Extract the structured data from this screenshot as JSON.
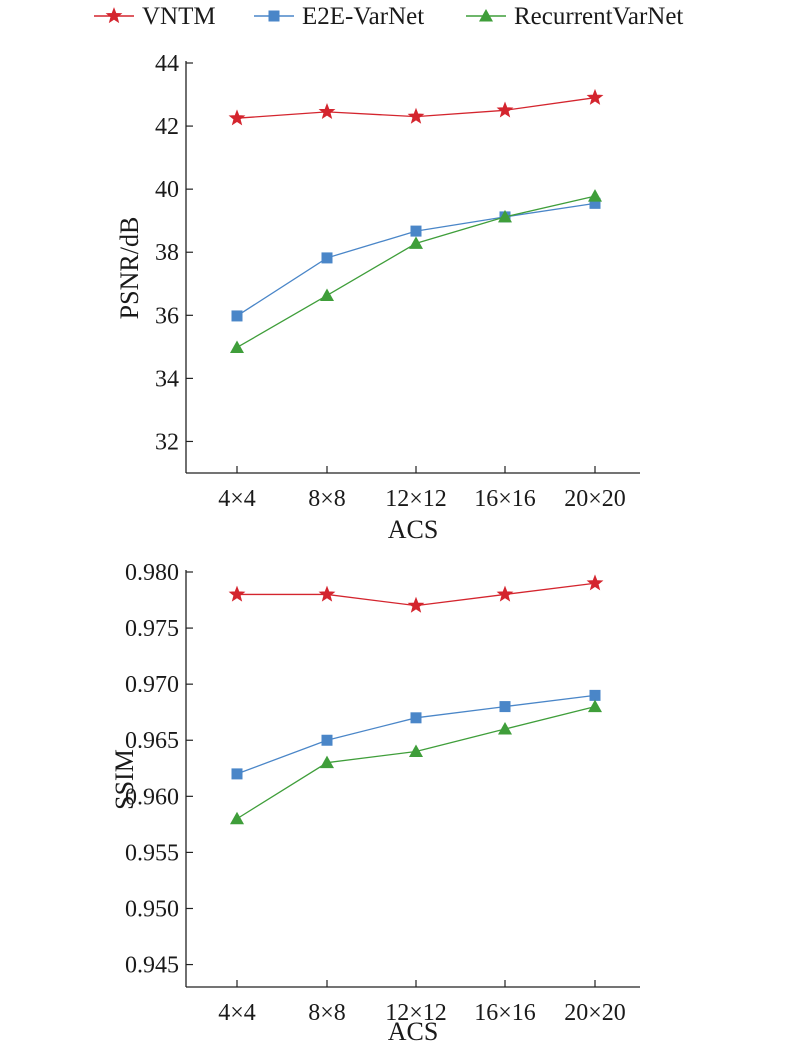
{
  "legend": {
    "items": [
      {
        "label": "VNTM",
        "color": "#d4252e",
        "marker": "star-icon"
      },
      {
        "label": "E2E-VarNet",
        "color": "#4a86c8",
        "marker": "square-icon"
      },
      {
        "label": "RecurrentVarNet",
        "color": "#3f9e3a",
        "marker": "triangle-icon"
      }
    ]
  },
  "chart_data": [
    {
      "type": "line",
      "title": "",
      "xlabel": "ACS",
      "ylabel": "PSNR/dB",
      "categories": [
        "4×4",
        "8×8",
        "12×12",
        "16×16",
        "20×20"
      ],
      "ylim": [
        31,
        44
      ],
      "yticks": [
        "32",
        "34",
        "36",
        "38",
        "40",
        "42",
        "44"
      ],
      "grid": false,
      "series": [
        {
          "name": "VNTM",
          "values": [
            42.25,
            42.45,
            42.3,
            42.5,
            42.9
          ]
        },
        {
          "name": "E2E-VarNet",
          "values": [
            35.98,
            37.82,
            38.67,
            39.12,
            39.55
          ]
        },
        {
          "name": "RecurrentVarNet",
          "values": [
            34.98,
            36.63,
            38.28,
            39.12,
            39.78
          ]
        }
      ]
    },
    {
      "type": "line",
      "title": "",
      "xlabel": "ACS",
      "ylabel": "SSIM",
      "categories": [
        "4×4",
        "8×8",
        "12×12",
        "16×16",
        "20×20"
      ],
      "ylim": [
        0.943,
        0.98
      ],
      "yticks": [
        "0.945",
        "0.950",
        "0.955",
        "0.960",
        "0.965",
        "0.970",
        "0.975",
        "0.980"
      ],
      "grid": false,
      "series": [
        {
          "name": "VNTM",
          "values": [
            0.978,
            0.978,
            0.977,
            0.978,
            0.979
          ]
        },
        {
          "name": "E2E-VarNet",
          "values": [
            0.962,
            0.965,
            0.967,
            0.968,
            0.969
          ]
        },
        {
          "name": "RecurrentVarNet",
          "values": [
            0.958,
            0.963,
            0.964,
            0.966,
            0.968
          ]
        }
      ]
    }
  ]
}
